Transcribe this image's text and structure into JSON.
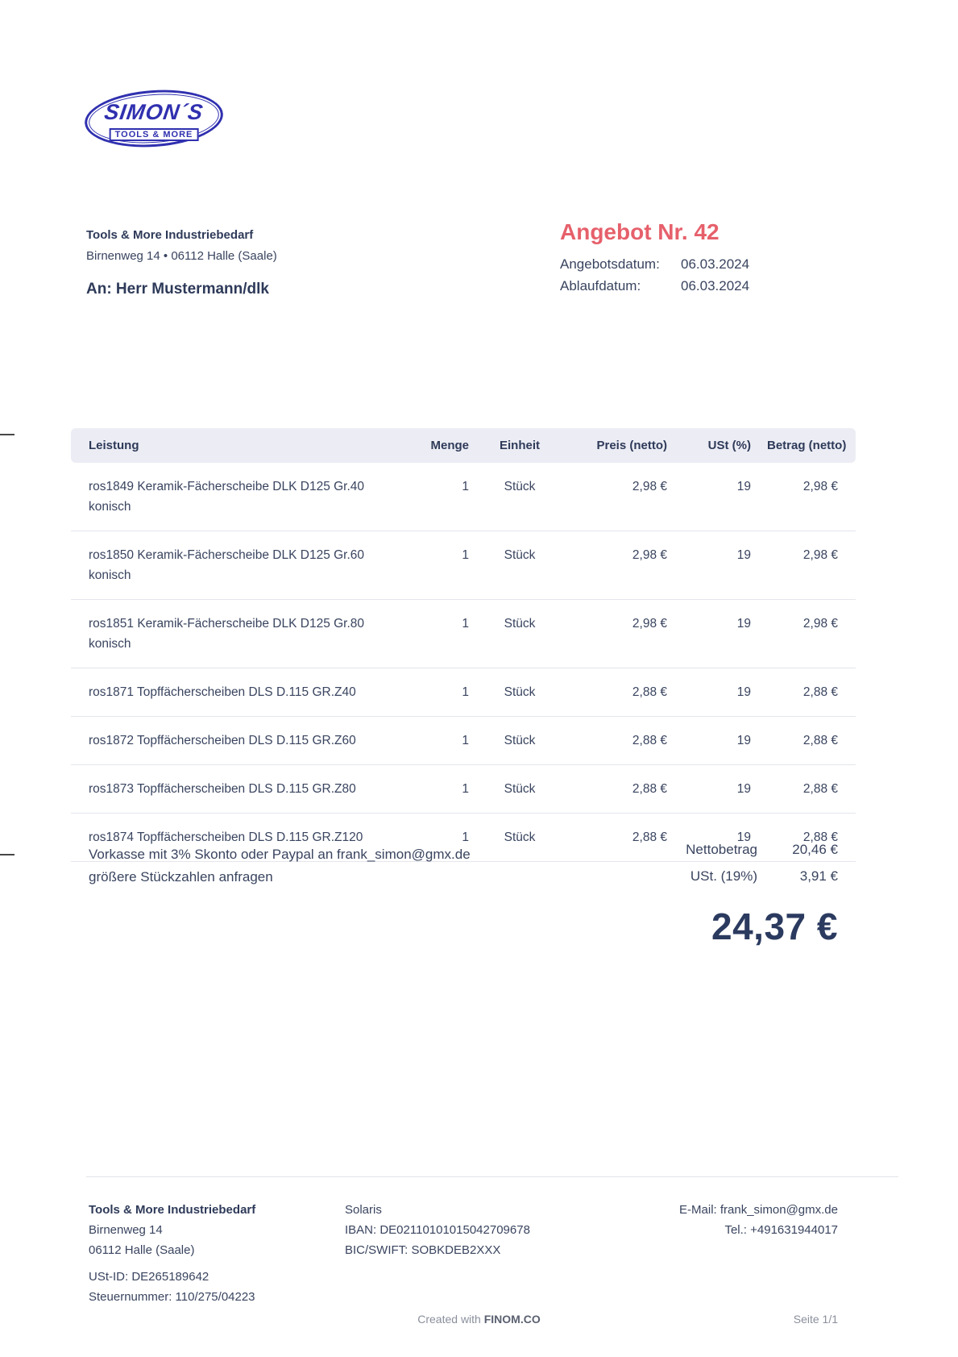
{
  "logo": {
    "name": "SIMON´S",
    "tagline": "TOOLS & MORE"
  },
  "sender": {
    "company": "Tools & More Industriebedarf",
    "address_line": "Birnenweg 14 •  06112 Halle (Saale)",
    "recipient": "An: Herr Mustermann/dlk"
  },
  "offer": {
    "title": "Angebot Nr. 42",
    "date_label": "Angebotsdatum:",
    "date_value": "06.03.2024",
    "expiry_label": "Ablaufdatum:",
    "expiry_value": "06.03.2024"
  },
  "table": {
    "headers": [
      "Leistung",
      "Menge",
      "Einheit",
      "Preis (netto)",
      "USt (%)",
      "Betrag (netto)"
    ],
    "rows": [
      {
        "leistung": "ros1849 Keramik-Fächerscheibe DLK D125 Gr.40 konisch",
        "menge": "1",
        "einheit": "Stück",
        "preis": "2,98 €",
        "ust": "19",
        "betrag": "2,98 €"
      },
      {
        "leistung": "ros1850 Keramik-Fächerscheibe DLK D125 Gr.60 konisch",
        "menge": "1",
        "einheit": "Stück",
        "preis": "2,98 €",
        "ust": "19",
        "betrag": "2,98 €"
      },
      {
        "leistung": "ros1851 Keramik-Fächerscheibe DLK D125 Gr.80 konisch",
        "menge": "1",
        "einheit": "Stück",
        "preis": "2,98 €",
        "ust": "19",
        "betrag": "2,98 €"
      },
      {
        "leistung": "ros1871 Topffächerscheiben DLS D.115 GR.Z40",
        "menge": "1",
        "einheit": "Stück",
        "preis": "2,88 €",
        "ust": "19",
        "betrag": "2,88 €"
      },
      {
        "leistung": "ros1872 Topffächerscheiben DLS D.115 GR.Z60",
        "menge": "1",
        "einheit": "Stück",
        "preis": "2,88 €",
        "ust": "19",
        "betrag": "2,88 €"
      },
      {
        "leistung": "ros1873 Topffächerscheiben DLS D.115 GR.Z80",
        "menge": "1",
        "einheit": "Stück",
        "preis": "2,88 €",
        "ust": "19",
        "betrag": "2,88 €"
      },
      {
        "leistung": "ros1874 Topffächerscheiben DLS D.115 GR.Z120",
        "menge": "1",
        "einheit": "Stück",
        "preis": "2,88 €",
        "ust": "19",
        "betrag": "2,88 €"
      }
    ]
  },
  "notes": {
    "line1": "Vorkasse mit 3% Skonto oder Paypal an frank_simon@gmx.de",
    "line2": "größere Stückzahlen anfragen"
  },
  "totals": {
    "net_label": "Nettobetrag",
    "net_value": "20,46 €",
    "vat_label": "USt. (19%)",
    "vat_value": "3,91 €",
    "grand_total": "24,37 €"
  },
  "footer": {
    "company": {
      "name": "Tools & More Industriebedarf",
      "street": "Birnenweg 14",
      "city": "06112 Halle (Saale)",
      "vat_id": "USt-ID: DE265189642",
      "tax_number": "Steuernummer: 110/275/04223"
    },
    "bank": {
      "name": "Solaris",
      "iban": "IBAN: DE02110101015042709678",
      "bic": "BIC/SWIFT: SOBKDEB2XXX"
    },
    "contact": {
      "email": "E-Mail: frank_simon@gmx.de",
      "phone": "Tel.: +491631944017"
    },
    "created_with": "Created with ",
    "brand": "FINOM.CO",
    "page_number": "Seite 1/1"
  },
  "colors": {
    "accent_red": "#e6606b",
    "logo_blue": "#3030b0",
    "text_navy": "#2e3a59",
    "table_header_bg": "#ecedf4"
  }
}
